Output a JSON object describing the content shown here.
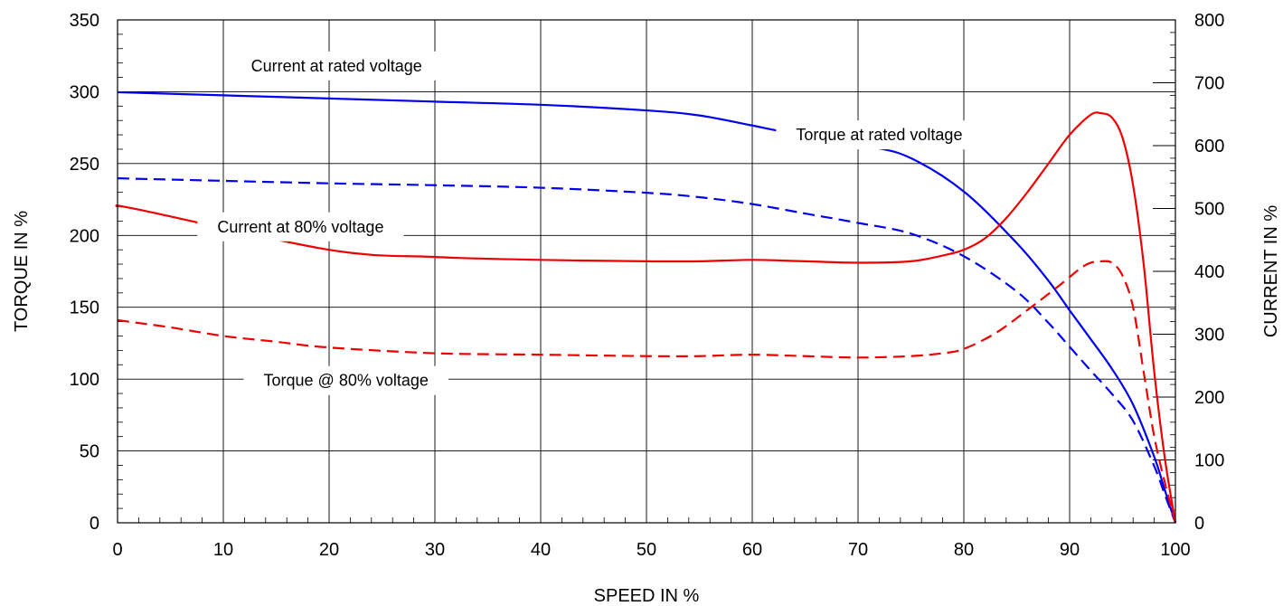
{
  "chart_data": {
    "type": "line",
    "xlabel": "SPEED IN %",
    "ylabel_left": "TORQUE IN %",
    "ylabel_right": "CURRENT IN %",
    "xlim": [
      0,
      100
    ],
    "ylim_left": [
      0,
      350
    ],
    "ylim_right": [
      0,
      800
    ],
    "x_ticks": [
      0,
      10,
      20,
      30,
      40,
      50,
      60,
      70,
      80,
      90,
      100
    ],
    "y_left_ticks": [
      0,
      50,
      100,
      150,
      200,
      250,
      300,
      350
    ],
    "y_right_ticks": [
      0,
      100,
      200,
      300,
      400,
      500,
      600,
      700,
      800
    ],
    "grid": true,
    "colors": {
      "blue": "#0000ee",
      "red": "#ee0000"
    },
    "series": [
      {
        "axis": "right",
        "color": "#0000ee",
        "dash": "solid",
        "points": [
          [
            0,
            685
          ],
          [
            10,
            680
          ],
          [
            20,
            675
          ],
          [
            30,
            670
          ],
          [
            40,
            665
          ],
          [
            50,
            656
          ],
          [
            55,
            648
          ],
          [
            60,
            632
          ],
          [
            63,
            622
          ],
          [
            71,
            599
          ],
          [
            75,
            580
          ],
          [
            80,
            527
          ],
          [
            85,
            445
          ],
          [
            88,
            385
          ],
          [
            90,
            338
          ],
          [
            92,
            292
          ],
          [
            94,
            245
          ],
          [
            96,
            188
          ],
          [
            98,
            105
          ],
          [
            99,
            52
          ],
          [
            100,
            0
          ]
        ]
      },
      {
        "axis": "right",
        "color": "#0000ee",
        "dash": "dashed",
        "points": [
          [
            0,
            548
          ],
          [
            10,
            544
          ],
          [
            20,
            540
          ],
          [
            30,
            537
          ],
          [
            40,
            533
          ],
          [
            50,
            525
          ],
          [
            55,
            518
          ],
          [
            60,
            507
          ],
          [
            65,
            492
          ],
          [
            70,
            477
          ],
          [
            75,
            460
          ],
          [
            80,
            424
          ],
          [
            85,
            368
          ],
          [
            88,
            318
          ],
          [
            90,
            280
          ],
          [
            92,
            242
          ],
          [
            94,
            205
          ],
          [
            96,
            162
          ],
          [
            98,
            90
          ],
          [
            99,
            45
          ],
          [
            100,
            0
          ]
        ]
      },
      {
        "axis": "left",
        "color": "#ee0000",
        "dash": "solid",
        "points": [
          [
            0,
            220
          ],
          [
            2,
            218
          ],
          [
            20,
            190
          ],
          [
            30,
            185
          ],
          [
            40,
            183
          ],
          [
            50,
            182
          ],
          [
            55,
            182
          ],
          [
            60,
            183
          ],
          [
            65,
            182
          ],
          [
            70,
            181
          ],
          [
            75,
            182
          ],
          [
            78,
            186
          ],
          [
            80,
            190
          ],
          [
            82,
            198
          ],
          [
            84,
            212
          ],
          [
            86,
            230
          ],
          [
            88,
            250
          ],
          [
            90,
            270
          ],
          [
            92,
            284
          ],
          [
            93,
            285
          ],
          [
            94,
            282
          ],
          [
            95,
            268
          ],
          [
            96,
            235
          ],
          [
            97,
            180
          ],
          [
            98,
            105
          ],
          [
            99,
            45
          ],
          [
            100,
            0
          ]
        ]
      },
      {
        "axis": "left",
        "color": "#ee0000",
        "dash": "dashed",
        "points": [
          [
            0,
            141
          ],
          [
            5,
            136
          ],
          [
            10,
            130
          ],
          [
            15,
            126
          ],
          [
            20,
            122
          ],
          [
            30,
            118
          ],
          [
            40,
            117
          ],
          [
            50,
            116
          ],
          [
            55,
            116
          ],
          [
            60,
            117
          ],
          [
            65,
            116
          ],
          [
            70,
            115
          ],
          [
            75,
            116
          ],
          [
            78,
            118
          ],
          [
            80,
            121
          ],
          [
            83,
            132
          ],
          [
            86,
            148
          ],
          [
            89,
            165
          ],
          [
            91,
            177
          ],
          [
            92,
            181
          ],
          [
            93,
            182
          ],
          [
            94,
            181
          ],
          [
            95,
            172
          ],
          [
            96,
            150
          ],
          [
            97,
            105
          ],
          [
            98,
            60
          ],
          [
            99,
            28
          ],
          [
            100,
            0
          ]
        ]
      }
    ],
    "annotations": [
      {
        "text": "Current at rated voltage",
        "x": 20.7,
        "y": 318
      },
      {
        "text": "Torque at rated voltage",
        "x": 72,
        "y": 270
      },
      {
        "text": "Current at 80% voltage",
        "x": 17.3,
        "y": 206
      },
      {
        "text": "Torque @ 80% voltage",
        "x": 21.6,
        "y": 99
      }
    ]
  }
}
